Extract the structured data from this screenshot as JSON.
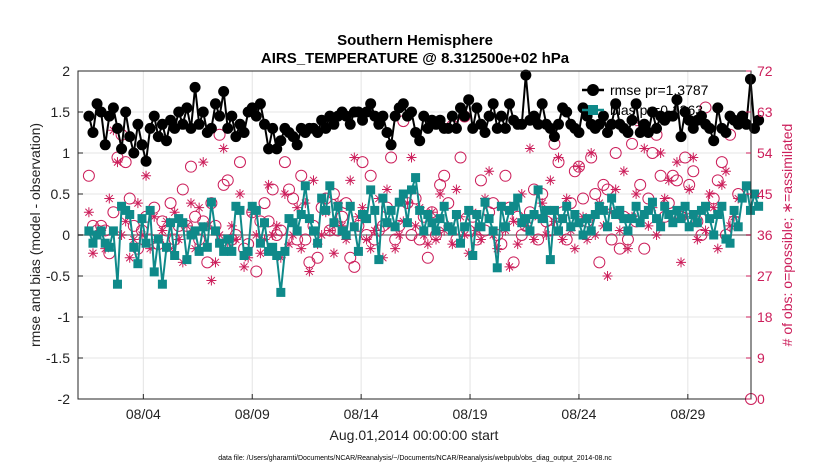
{
  "chart_data": {
    "type": "line",
    "title": "Southern Hemisphere",
    "subtitle": "AIRS_TEMPERATURE @ 8.312500e+02 hPa",
    "xlabel": "Aug.01,2014 00:00:00 start",
    "ylabel": "rmse and bias (model - observation)",
    "y2label": "# of obs: o=possible; ∗=assimilated",
    "x_tick_labels": [
      "08/04",
      "08/09",
      "08/14",
      "08/19",
      "08/24",
      "08/29"
    ],
    "x_tick_days": [
      4,
      9,
      14,
      19,
      24,
      29
    ],
    "xlim": [
      1,
      31.9
    ],
    "ylim": [
      -2,
      2
    ],
    "y_tick_labels": [
      "-2",
      "-1.5",
      "-1",
      "-0.5",
      "0",
      "0.5",
      "1",
      "1.5",
      "2"
    ],
    "y2lim": [
      0,
      72
    ],
    "y2_tick_labels": [
      "0",
      "9",
      "18",
      "27",
      "36",
      "45",
      "54",
      "63",
      "72"
    ],
    "grid": true,
    "legend_position": "top-right",
    "footnote": "data file: /Users/gharamti/Documents/NCAR/Reanalysis/~/Documents/NCAR/Reanalysis/webpub/obs_diag_output_2014-08.nc",
    "colors": {
      "rmse": "#000000",
      "bias": "#0f8a8a",
      "obs": "#cc1f5b"
    },
    "series": [
      {
        "name": "rmse pr=1.3787",
        "legend_label": "rmse pr=1.3787",
        "values": [
          1.45,
          1.25,
          1.6,
          1.5,
          1.1,
          1.45,
          1.55,
          1.3,
          1.05,
          1.5,
          1.2,
          1.0,
          1.35,
          1.1,
          0.9,
          1.3,
          1.45,
          1.2,
          1.35,
          1.15,
          1.4,
          1.3,
          1.5,
          1.35,
          1.55,
          1.3,
          1.8,
          1.35,
          1.5,
          1.25,
          1.3,
          1.6,
          1.45,
          1.75,
          1.3,
          1.45,
          1.2,
          1.35,
          1.25,
          1.5,
          1.55,
          1.45,
          1.6,
          1.35,
          1.05,
          1.3,
          1.05,
          1.15,
          1.3,
          1.25,
          1.2,
          1.1,
          1.3,
          1.25,
          1.3,
          1.3,
          1.25,
          1.4,
          1.3,
          1.45,
          1.35,
          1.45,
          1.5,
          1.45,
          1.35,
          1.5,
          1.5,
          1.4,
          1.5,
          1.6,
          1.45,
          1.35,
          1.45,
          1.25,
          1.1,
          1.45,
          1.55,
          1.6,
          1.45,
          1.5,
          1.25,
          1.15,
          1.45,
          1.3,
          1.4,
          1.35,
          1.4,
          1.3,
          1.3,
          1.45,
          1.3,
          1.55,
          1.45,
          1.65,
          1.3,
          1.55,
          1.35,
          1.25,
          1.45,
          1.6,
          1.3,
          1.45,
          1.3,
          1.6,
          1.4,
          1.35,
          1.35,
          1.95,
          1.4,
          1.45,
          1.35,
          1.6,
          1.35,
          1.3,
          1.2,
          1.35,
          1.55,
          1.5,
          1.35,
          1.3,
          1.25,
          1.55,
          1.45,
          1.35,
          1.3,
          1.35,
          1.45,
          1.25,
          1.35,
          1.6,
          1.35,
          1.3,
          1.25,
          1.4,
          1.6,
          1.25,
          1.35,
          1.25,
          1.5,
          1.3,
          1.45,
          1.4,
          1.45,
          1.45,
          1.65,
          1.2,
          1.5,
          1.4,
          1.3,
          1.4,
          1.45,
          1.35,
          1.3,
          1.15,
          1.55,
          1.3,
          1.25,
          1.45,
          1.4,
          1.35,
          1.45,
          1.35,
          1.9,
          1.3,
          1.4
        ]
      },
      {
        "name": "bias pr=0.1363",
        "legend_label": "bias pr=0.1363",
        "values": [
          0.05,
          -0.1,
          0.0,
          0.05,
          -0.1,
          -0.15,
          0.05,
          -0.6,
          0.35,
          0.3,
          0.25,
          -0.15,
          -0.35,
          0.2,
          -0.1,
          0.3,
          -0.45,
          -0.05,
          -0.6,
          -0.15,
          0.15,
          -0.25,
          0.2,
          0.15,
          -0.3,
          0.0,
          0.05,
          -0.2,
          0.1,
          -0.15,
          0.4,
          0.05,
          -0.1,
          -0.2,
          -0.05,
          -0.2,
          0.35,
          0.3,
          -0.25,
          -0.2,
          0.35,
          0.3,
          -0.1,
          0.15,
          -0.2,
          -0.15,
          -0.25,
          -0.7,
          -0.2,
          0.2,
          0.15,
          0.05,
          0.25,
          0.6,
          0.2,
          0.05,
          -0.1,
          0.45,
          0.3,
          0.6,
          0.15,
          0.35,
          0.05,
          0.0,
          0.35,
          0.1,
          -0.2,
          0.25,
          0.2,
          0.55,
          0.3,
          -0.3,
          0.45,
          0.15,
          0.3,
          0.1,
          0.4,
          0.5,
          0.15,
          0.55,
          0.7,
          0.3,
          0.05,
          0.25,
          0.15,
          0.05,
          0.2,
          0.35,
          0.1,
          0.05,
          0.25,
          -0.1,
          0.1,
          0.3,
          -0.25,
          0.25,
          0.1,
          0.4,
          0.2,
          0.05,
          -0.4,
          0.35,
          0.1,
          0.3,
          0.35,
          0.45,
          0.15,
          0.2,
          0.05,
          0.25,
          0.55,
          0.2,
          0.3,
          -0.3,
          0.3,
          0.05,
          0.2,
          0.35,
          0.1,
          0.25,
          0.15,
          0.0,
          0.2,
          0.05,
          0.25,
          0.35,
          0.3,
          0.1,
          0.45,
          0.25,
          0.3,
          0.2,
          0.05,
          0.2,
          0.35,
          0.15,
          0.25,
          0.3,
          0.4,
          0.2,
          0.1,
          0.35,
          0.25,
          0.15,
          0.3,
          0.2,
          0.35,
          0.1,
          0.25,
          0.15,
          0.3,
          0.35,
          0.2,
          0.0,
          0.25,
          0.35,
          -0.05,
          -0.1,
          0.3,
          0.1,
          0.45,
          0.6,
          0.3,
          0.5,
          0.35
        ]
      },
      {
        "name": "obs possible",
        "legend_label": "",
        "values": [
          49,
          38,
          37,
          38,
          37,
          32,
          41,
          53,
          58,
          52,
          44,
          38,
          33,
          37,
          40,
          35,
          42,
          34,
          39,
          37,
          43,
          35,
          38,
          46,
          38,
          51,
          40,
          35,
          39,
          30,
          43,
          38,
          58,
          47,
          48,
          35,
          36,
          52,
          33,
          34,
          41,
          28,
          39,
          43,
          39,
          46,
          36,
          37,
          52,
          46,
          44,
          35,
          49,
          35,
          30,
          38,
          31,
          42,
          44,
          37,
          45,
          37,
          40,
          43,
          31,
          29,
          38,
          52,
          36,
          49,
          35,
          37,
          38,
          42,
          53,
          35,
          38,
          61,
          43,
          36,
          44,
          35,
          40,
          31,
          41,
          36,
          47,
          49,
          43,
          60,
          35,
          53,
          62,
          37,
          40,
          35,
          48,
          37,
          41,
          43,
          36,
          34,
          49,
          42,
          30,
          40,
          36,
          38,
          41,
          46,
          35,
          45,
          39,
          37,
          56,
          52,
          41,
          35,
          43,
          50,
          51,
          44,
          39,
          53,
          45,
          30,
          47,
          46,
          35,
          54,
          33,
          40,
          35,
          56,
          39,
          47,
          33,
          44,
          54,
          58,
          49,
          40,
          43,
          49,
          48,
          40,
          53,
          47,
          50,
          39,
          36,
          64,
          41,
          44,
          48,
          52,
          36,
          58,
          39,
          45
        ]
      },
      {
        "name": "obs assimilated",
        "legend_label": "",
        "values": [
          41,
          32,
          36,
          37,
          33,
          44,
          59,
          52,
          36,
          39,
          31,
          35,
          43,
          36,
          49,
          33,
          40,
          35,
          37,
          39,
          33,
          41,
          35,
          30,
          38,
          43,
          33,
          42,
          52,
          38,
          26,
          30,
          36,
          55,
          33,
          38,
          35,
          45,
          29,
          31,
          41,
          36,
          32,
          35,
          47,
          36,
          38,
          31,
          45,
          34,
          36,
          42,
          33,
          43,
          28,
          48,
          34,
          36,
          41,
          37,
          32,
          43,
          38,
          35,
          48,
          53,
          40,
          42,
          35,
          33,
          37,
          44,
          31,
          46,
          38,
          33,
          36,
          39,
          43,
          53,
          38,
          42,
          36,
          34,
          41,
          35,
          45,
          37,
          38,
          34,
          46,
          40,
          36,
          32,
          41,
          37,
          35,
          44,
          50,
          36,
          33,
          42,
          37,
          29,
          39,
          34,
          45,
          38,
          55,
          35,
          40,
          43,
          36,
          48,
          39,
          53,
          35,
          44,
          37,
          33,
          51,
          40,
          35,
          54,
          36,
          43,
          38,
          27,
          41,
          46,
          37,
          50,
          33,
          40,
          45,
          60,
          55,
          38,
          42,
          36,
          54,
          44,
          48,
          39,
          52,
          30,
          40,
          46,
          53,
          35,
          61,
          37,
          45,
          42,
          33,
          47,
          50,
          38,
          40,
          44
        ]
      }
    ]
  }
}
